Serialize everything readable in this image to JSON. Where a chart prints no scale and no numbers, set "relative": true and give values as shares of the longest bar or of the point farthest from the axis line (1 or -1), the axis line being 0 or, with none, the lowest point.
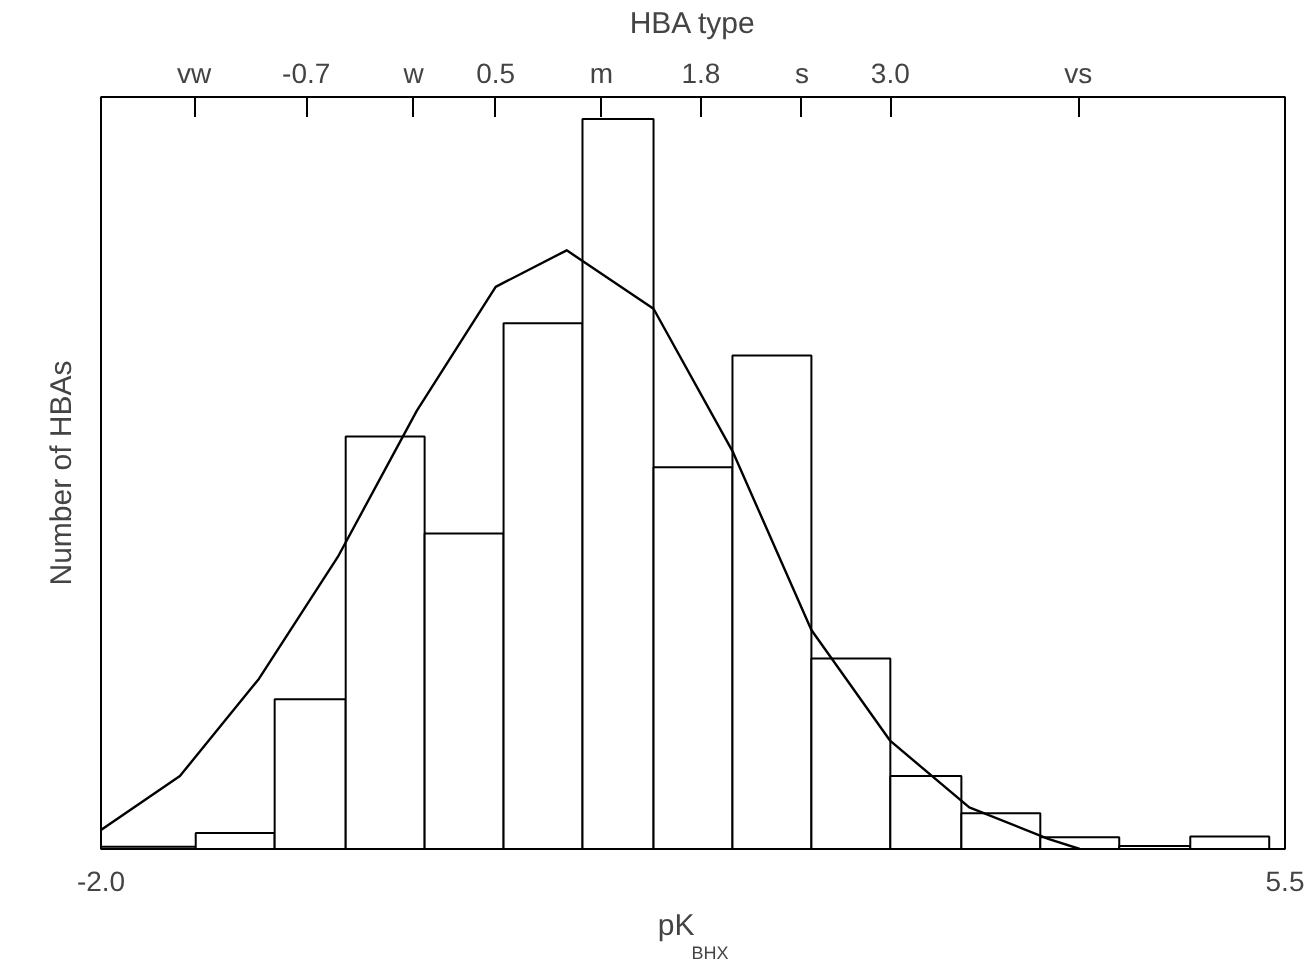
{
  "chart_data": {
    "type": "histogram",
    "xlabel": "pK$_{BHX}$",
    "ylabel": "Number of HBAs",
    "x2label": "HBA type",
    "relative": true,
    "xlim": [
      -2.0,
      5.5
    ],
    "xticks": [
      {
        "value": -2.0,
        "label": "-2.0"
      },
      {
        "value": 5.5,
        "label": "5.5"
      }
    ],
    "x2lim": [
      -2.0,
      5.5
    ],
    "x2ticks": [
      {
        "value": -1.41,
        "label": "vw"
      },
      {
        "value": -0.7,
        "label": "-0.7"
      },
      {
        "value": -0.02,
        "label": "w"
      },
      {
        "value": 0.5,
        "label": "0.5"
      },
      {
        "value": 1.17,
        "label": "m"
      },
      {
        "value": 1.8,
        "label": "1.8"
      },
      {
        "value": 2.44,
        "label": "s"
      },
      {
        "value": 3.0,
        "label": "3.0"
      },
      {
        "value": 4.19,
        "label": "vs"
      }
    ],
    "bins": [
      -2.0,
      -1.4,
      -0.9,
      -0.45,
      0.05,
      0.55,
      1.05,
      1.5,
      2.0,
      2.5,
      3.0,
      3.45,
      3.95,
      4.45,
      4.9,
      5.4
    ],
    "series": [
      {
        "type": "histogram",
        "color": "#ffffff",
        "values": [
          0.003,
          0.022,
          0.205,
          0.565,
          0.432,
          0.72,
          1.0,
          0.523,
          0.676,
          0.261,
          0.1,
          0.049,
          0.016,
          0.004,
          0.017
        ]
      },
      {
        "type": "line",
        "color": "#000000",
        "x": [
          -2.0,
          -1.5,
          -1.0,
          -0.5,
          0.0,
          0.5,
          0.95,
          1.5,
          2.0,
          2.5,
          3.0,
          3.5,
          4.0,
          4.2
        ],
        "values": [
          0.026,
          0.1,
          0.233,
          0.4,
          0.6,
          0.77,
          0.82,
          0.74,
          0.545,
          0.3,
          0.148,
          0.057,
          0.014,
          0.0
        ]
      }
    ]
  }
}
